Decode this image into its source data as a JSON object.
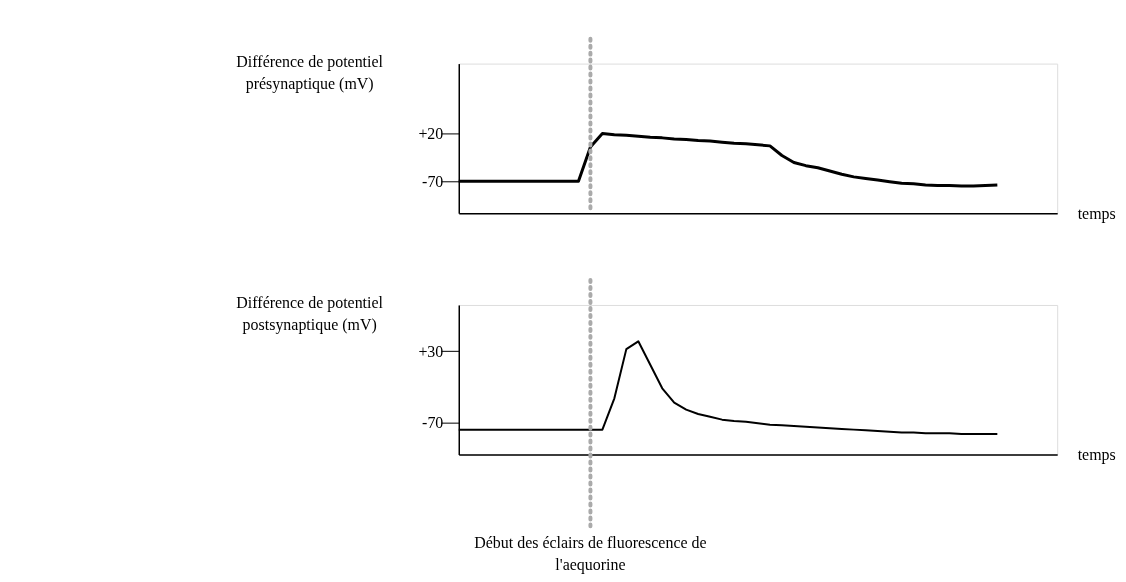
{
  "chart_data": [
    {
      "type": "line",
      "ylabel": "Différence de potentiel présynaptique (mV)",
      "xlabel": "temps",
      "categories": [
        null,
        null,
        null,
        null,
        null,
        null,
        null,
        null,
        null,
        null,
        null,
        null,
        null,
        null,
        null,
        null,
        null,
        null,
        null,
        null,
        null,
        null,
        null,
        null,
        null,
        null,
        null,
        null,
        null,
        null,
        null,
        null,
        null,
        null,
        null,
        null,
        null,
        null,
        null,
        null,
        null,
        null,
        null,
        null,
        null,
        null,
        null,
        null,
        null,
        null,
        null
      ],
      "series": [
        {
          "color": "#000000",
          "values": [
            -70,
            -70,
            -70,
            -70,
            -70,
            -70,
            -70,
            -70,
            -70,
            -70,
            -70,
            -6,
            19,
            17,
            16,
            14,
            12,
            11,
            9,
            8,
            6,
            5,
            3,
            1,
            0,
            -2,
            -4,
            -22,
            -35,
            -41,
            -45,
            -51,
            -57,
            -62,
            -65,
            -68,
            -71,
            -74,
            -75,
            -77,
            -78,
            -78,
            -79,
            -79,
            -78,
            -77,
            null,
            null,
            null,
            null,
            null
          ]
        }
      ],
      "ylim": [
        -130,
        150
      ],
      "yticks": [
        {
          "value": 20,
          "label": "+20"
        },
        -70
      ],
      "tick_labels": "y",
      "grid": false
    },
    {
      "type": "line",
      "ylabel": "Différence de potentiel postsynaptique (mV)",
      "xlabel": "temps",
      "categories": [
        null,
        null,
        null,
        null,
        null,
        null,
        null,
        null,
        null,
        null,
        null,
        null,
        null,
        null,
        null,
        null,
        null,
        null,
        null,
        null,
        null,
        null,
        null,
        null,
        null,
        null,
        null,
        null,
        null,
        null,
        null,
        null,
        null,
        null,
        null,
        null,
        null,
        null,
        null,
        null,
        null,
        null,
        null,
        null,
        null,
        null,
        null,
        null,
        null,
        null,
        null
      ],
      "series": [
        {
          "color": "#000000",
          "values": [
            -80,
            -80,
            -80,
            -80,
            -80,
            -80,
            -80,
            -80,
            -80,
            -80,
            -80,
            -80,
            -80,
            -36,
            33,
            44,
            11,
            -22,
            -42,
            -52,
            -58,
            -62,
            -66,
            -68,
            -69,
            -71,
            -73,
            -74,
            -75,
            -76,
            -77,
            -78,
            -79,
            -80,
            -81,
            -82,
            -83,
            -84,
            -84,
            -85,
            -85,
            -85,
            -86,
            -86,
            -86,
            -86,
            null,
            null,
            null,
            null,
            null
          ]
        }
      ],
      "ylim": [
        -115,
        95
      ],
      "yticks": [
        {
          "value": 30,
          "label": "+30"
        },
        -70
      ],
      "tick_labels": "y",
      "grid": false,
      "annotations": [
        "Début des éclairs de fluorescence de l'aequorine"
      ]
    }
  ]
}
